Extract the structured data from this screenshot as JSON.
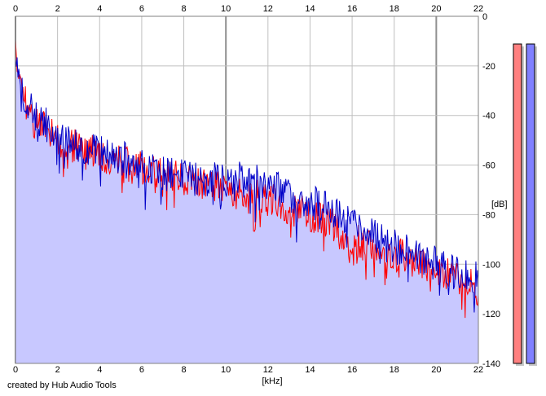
{
  "credit": "created by Hub Audio Tools",
  "colors": {
    "fill": "#c8c8ff",
    "left_channel": "#ff0000",
    "right_channel": "#0000c8",
    "grid_minor": "#c0c0c0",
    "grid_major": "#909090",
    "meter_left": "#ff8080",
    "meter_right": "#8080ff"
  },
  "meters": [
    {
      "channel": "left",
      "level": 0.98
    },
    {
      "channel": "right",
      "level": 0.98
    }
  ],
  "chart_data": {
    "type": "area",
    "xlabel": "[kHz]",
    "ylabel": "[dB]",
    "xlim": [
      0,
      22
    ],
    "ylim": [
      -140,
      0
    ],
    "x_ticks": [
      "0",
      "2",
      "4",
      "6",
      "8",
      "10",
      "12",
      "14",
      "16",
      "18",
      "20",
      "22"
    ],
    "y_ticks": [
      "0",
      "-20",
      "-40",
      "-60",
      "-80",
      "-100",
      "-120",
      "-140"
    ],
    "grid": true,
    "major_gridlines_khz": [
      0,
      10,
      20
    ],
    "series": [
      {
        "channel": "left",
        "x": [
          0,
          0.2,
          0.5,
          1,
          1.5,
          2,
          3,
          4,
          5,
          6,
          7,
          8,
          9,
          10,
          11,
          12,
          13,
          14,
          15,
          16,
          17,
          18,
          19,
          20,
          21,
          22
        ],
        "y": [
          -14,
          -28,
          -38,
          -46,
          -48,
          -52,
          -55,
          -58,
          -61,
          -63,
          -66,
          -68,
          -70,
          -72,
          -74,
          -76,
          -79,
          -82,
          -86,
          -92,
          -96,
          -98,
          -100,
          -104,
          -108,
          -112
        ]
      },
      {
        "channel": "right",
        "x": [
          0,
          0.2,
          0.5,
          1,
          1.5,
          2,
          3,
          4,
          5,
          6,
          7,
          8,
          9,
          10,
          11,
          12,
          13,
          14,
          15,
          16,
          17,
          18,
          19,
          20,
          21,
          22
        ],
        "y": [
          -16,
          -27,
          -36,
          -44,
          -46,
          -51,
          -55,
          -57,
          -59,
          -62,
          -65,
          -67,
          -68,
          -68,
          -66,
          -70,
          -74,
          -77,
          -80,
          -84,
          -90,
          -95,
          -98,
          -102,
          -106,
          -108
        ]
      }
    ]
  }
}
